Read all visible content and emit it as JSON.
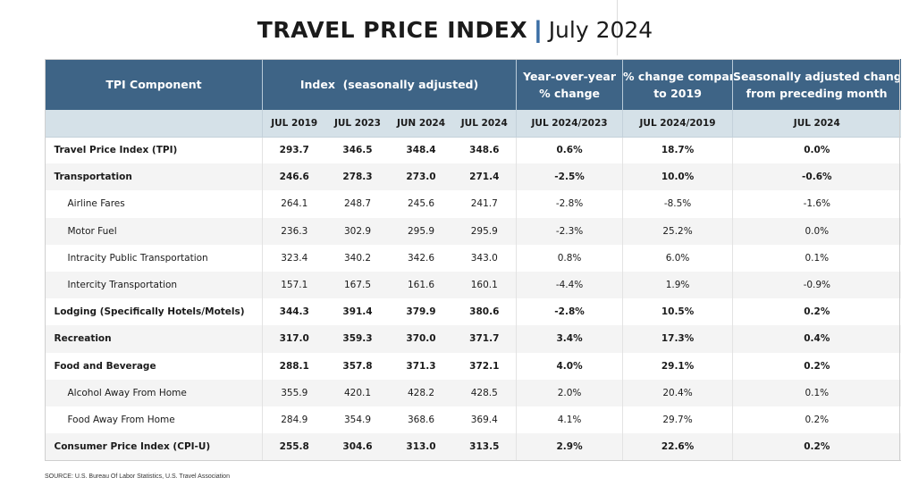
{
  "title": {
    "main": "TRAVEL PRICE INDEX",
    "separator": "|",
    "date": "July 2024"
  },
  "header": {
    "component": "TPI Component",
    "index_group": "Index  (seasonally adjusted)",
    "yoy_line1": "Year-over-year",
    "yoy_line2": "% change",
    "vs2019_line1": "% change compared",
    "vs2019_line2": "to 2019",
    "seasonal_line1": "Seasonally adjusted change",
    "seasonal_line2": "from preceding month"
  },
  "subheader": [
    "JUL 2019",
    "JUL 2023",
    "JUN 2024",
    "JUL 2024",
    "JUL 2024/2023",
    "JUL 2024/2019",
    "JUL 2024"
  ],
  "rows": [
    {
      "label": "Travel Price Index (TPI)",
      "values": [
        "293.7",
        "346.5",
        "348.4",
        "348.6",
        "0.6%",
        "18.7%",
        "0.0%"
      ]
    },
    {
      "label": "Transportation",
      "values": [
        "246.6",
        "278.3",
        "273.0",
        "271.4",
        "-2.5%",
        "10.0%",
        "-0.6%"
      ]
    },
    {
      "label": "Airline Fares",
      "values": [
        "264.1",
        "248.7",
        "245.6",
        "241.7",
        "-2.8%",
        "-8.5%",
        "-1.6%"
      ]
    },
    {
      "label": "Motor Fuel",
      "values": [
        "236.3",
        "302.9",
        "295.9",
        "295.9",
        "-2.3%",
        "25.2%",
        "0.0%"
      ]
    },
    {
      "label": "Intracity Public Transportation",
      "values": [
        "323.4",
        "340.2",
        "342.6",
        "343.0",
        "0.8%",
        "6.0%",
        "0.1%"
      ]
    },
    {
      "label": "Intercity Transportation",
      "values": [
        "157.1",
        "167.5",
        "161.6",
        "160.1",
        "-4.4%",
        "1.9%",
        "-0.9%"
      ]
    },
    {
      "label": "Lodging (Specifically Hotels/Motels)",
      "values": [
        "344.3",
        "391.4",
        "379.9",
        "380.6",
        "-2.8%",
        "10.5%",
        "0.2%"
      ]
    },
    {
      "label": "Recreation",
      "values": [
        "317.0",
        "359.3",
        "370.0",
        "371.7",
        "3.4%",
        "17.3%",
        "0.4%"
      ]
    },
    {
      "label": "Food and Beverage",
      "values": [
        "288.1",
        "357.8",
        "371.3",
        "372.1",
        "4.0%",
        "29.1%",
        "0.2%"
      ]
    },
    {
      "label": "Alcohol Away From Home",
      "values": [
        "355.9",
        "420.1",
        "428.2",
        "428.5",
        "2.0%",
        "20.4%",
        "0.1%"
      ]
    },
    {
      "label": "Food Away From Home",
      "values": [
        "284.9",
        "354.9",
        "368.6",
        "369.4",
        "4.1%",
        "29.7%",
        "0.2%"
      ]
    },
    {
      "label": "Consumer Price Index (CPI-U)",
      "values": [
        "255.8",
        "304.6",
        "313.0",
        "313.5",
        "2.9%",
        "22.6%",
        "0.2%"
      ]
    }
  ],
  "source": "SOURCE: U.S. Bureau Of Labor Statistics, U.S. Travel Association",
  "colors": {
    "header_bg": "#3e6486",
    "subheader_bg": "#d5e1e8",
    "accent": "#3b6ea5"
  }
}
